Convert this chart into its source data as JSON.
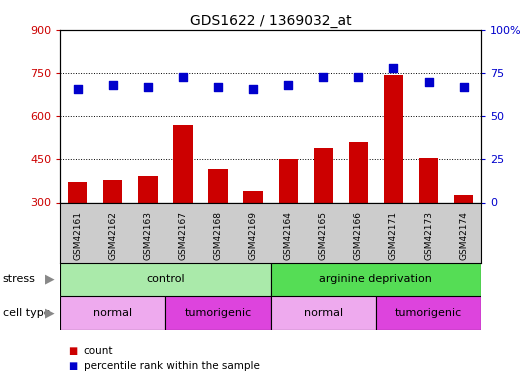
{
  "title": "GDS1622 / 1369032_at",
  "samples": [
    "GSM42161",
    "GSM42162",
    "GSM42163",
    "GSM42167",
    "GSM42168",
    "GSM42169",
    "GSM42164",
    "GSM42165",
    "GSM42166",
    "GSM42171",
    "GSM42173",
    "GSM42174"
  ],
  "counts": [
    370,
    380,
    392,
    568,
    418,
    340,
    452,
    490,
    510,
    745,
    455,
    325
  ],
  "percentiles": [
    66,
    68,
    67,
    73,
    67,
    66,
    68,
    73,
    73,
    78,
    70,
    67
  ],
  "ymin": 300,
  "ymax": 900,
  "yticks": [
    300,
    450,
    600,
    750,
    900
  ],
  "y2min": 0,
  "y2max": 100,
  "y2ticks": [
    0,
    25,
    50,
    75,
    100
  ],
  "bar_color": "#cc0000",
  "dot_color": "#0000cc",
  "plot_bg": "#ffffff",
  "gray_bg": "#cccccc",
  "stress_control_color": "#aaeaaa",
  "stress_argdep_color": "#55dd55",
  "cell_normal_color": "#eeaaee",
  "cell_tumorigenic_color": "#dd44dd",
  "stress_labels": [
    "control",
    "arginine deprivation"
  ],
  "cell_labels": [
    "normal",
    "tumorigenic",
    "normal",
    "tumorigenic"
  ],
  "cell_ranges": [
    [
      0,
      3
    ],
    [
      3,
      6
    ],
    [
      6,
      9
    ],
    [
      9,
      12
    ]
  ],
  "ylabel_left_color": "#cc0000",
  "ylabel_right_color": "#0000cc",
  "arrow_color": "#888888"
}
